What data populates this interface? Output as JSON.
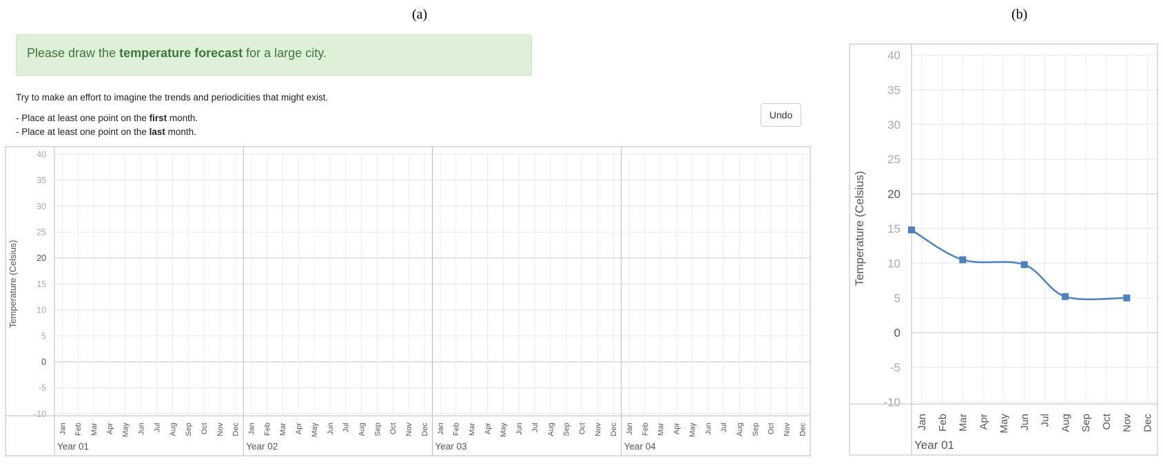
{
  "labels": {
    "a": "(a)",
    "b": "(b)"
  },
  "prompt": {
    "prefix": "Please draw the ",
    "bold": "temperature forecast",
    "suffix": " for a large city."
  },
  "instructions": {
    "line1": "Try to make an effort to imagine the trends and periodicities that might exist.",
    "line2_prefix": "- Place at least one point on the ",
    "line2_bold": "first",
    "line2_suffix": " month.",
    "line3_prefix": "- Place at least one point on the ",
    "line3_bold": "last",
    "line3_suffix": " month."
  },
  "toolbar": {
    "undo_label": "Undo"
  },
  "chart_data": [
    {
      "type": "line",
      "ylabel": "Temperature (Celsius)",
      "ylim": [
        -10,
        40
      ],
      "yticks": [
        40,
        35,
        30,
        25,
        20,
        15,
        10,
        5,
        0,
        -5,
        -10
      ],
      "months": [
        "Jan",
        "Feb",
        "Mar",
        "Apr",
        "May",
        "Jun",
        "Jul",
        "Aug",
        "Sep",
        "Oct",
        "Nov",
        "Dec"
      ],
      "years": [
        "Year 01",
        "Year 02",
        "Year 03",
        "Year 04"
      ],
      "grid": true,
      "points": []
    },
    {
      "type": "line",
      "ylabel": "Temperature (Celsius)",
      "ylim": [
        -10,
        40
      ],
      "yticks": [
        40,
        35,
        30,
        25,
        20,
        15,
        10,
        5,
        0,
        -5,
        -10
      ],
      "months": [
        "Jan",
        "Feb",
        "Mar",
        "Apr",
        "May",
        "Jun",
        "Jul",
        "Aug",
        "Sep",
        "Oct",
        "Nov",
        "Dec"
      ],
      "years": [
        "Year 01"
      ],
      "grid": true,
      "points": [
        {
          "x": "Jan",
          "y": 14.8
        },
        {
          "x": "Mar",
          "y": 10.5
        },
        {
          "x": "Jun",
          "y": 9.8
        },
        {
          "x": "Aug",
          "y": 5.2
        },
        {
          "x": "Nov",
          "y": 5.0
        }
      ],
      "line_color": "#4f81bd"
    }
  ]
}
